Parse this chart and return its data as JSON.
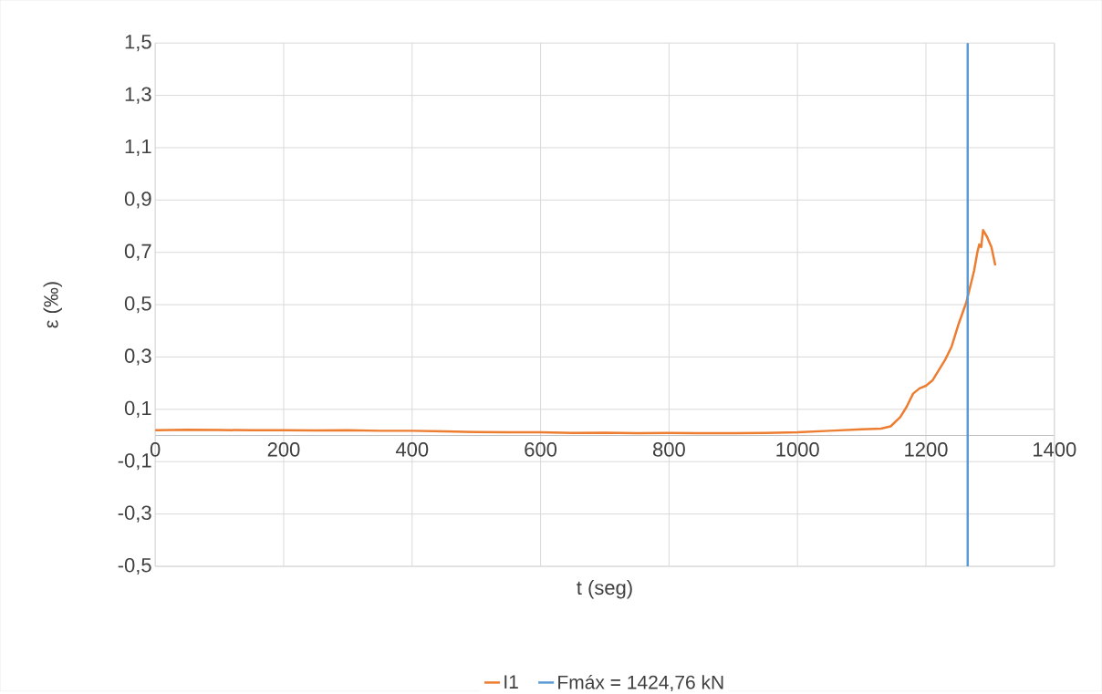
{
  "chart_data": {
    "type": "line",
    "xlabel": "t (seg)",
    "ylabel": "ε (‰)",
    "series": [
      {
        "name": "I1",
        "color": "#ed7d31",
        "x": [
          0,
          50,
          100,
          150,
          200,
          250,
          300,
          350,
          400,
          450,
          500,
          550,
          600,
          650,
          700,
          750,
          800,
          850,
          900,
          950,
          1000,
          1050,
          1100,
          1130,
          1145,
          1160,
          1170,
          1180,
          1190,
          1200,
          1210,
          1220,
          1230,
          1240,
          1250,
          1263,
          1275,
          1280,
          1283,
          1286,
          1289,
          1295,
          1302,
          1308
        ],
        "values": [
          0.02,
          0.022,
          0.021,
          0.02,
          0.02,
          0.019,
          0.02,
          0.018,
          0.018,
          0.016,
          0.013,
          0.012,
          0.012,
          0.01,
          0.011,
          0.009,
          0.01,
          0.009,
          0.009,
          0.01,
          0.012,
          0.018,
          0.024,
          0.026,
          0.035,
          0.07,
          0.11,
          0.16,
          0.18,
          0.19,
          0.21,
          0.25,
          0.29,
          0.34,
          0.42,
          0.51,
          0.63,
          0.7,
          0.73,
          0.72,
          0.785,
          0.76,
          0.72,
          0.65
        ]
      },
      {
        "name": "Fmáx = 1424,76 kN",
        "color": "#5b9bd5",
        "x": [
          1265,
          1265
        ],
        "values": [
          -0.5,
          1.5
        ]
      }
    ],
    "xlim": [
      0,
      1400
    ],
    "xticks": [
      0,
      200,
      400,
      600,
      800,
      1000,
      1200,
      1400
    ],
    "ylim": [
      -0.5,
      1.5
    ],
    "yticks": [
      {
        "value": -0.5,
        "label": "-0,5"
      },
      {
        "value": -0.3,
        "label": "-0,3"
      },
      {
        "value": -0.1,
        "label": "-0,1"
      },
      {
        "value": 0.1,
        "label": "0,1"
      },
      {
        "value": 0.3,
        "label": "0,3"
      },
      {
        "value": 0.5,
        "label": "0,5"
      },
      {
        "value": 0.7,
        "label": "0,7"
      },
      {
        "value": 0.9,
        "label": "0,9"
      },
      {
        "value": 1.1,
        "label": "1,1"
      },
      {
        "value": 1.3,
        "label": "1,3"
      },
      {
        "value": 1.5,
        "label": "1,5"
      }
    ],
    "grid": true,
    "legend": "bottom",
    "marker": "none",
    "line_style": "solid"
  }
}
